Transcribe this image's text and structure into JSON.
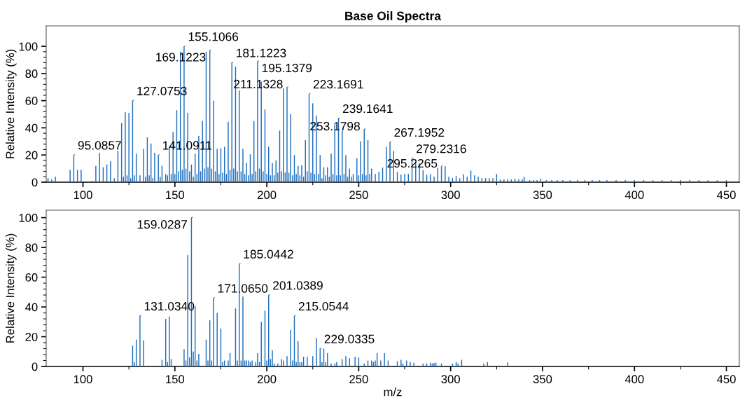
{
  "chart_data": [
    {
      "type": "bar",
      "title": "Base Oil Spectra",
      "ylabel": "Relative Intensity (%)",
      "color": "#1f6fbf",
      "x": [
        81,
        83,
        85,
        93,
        95,
        97,
        99,
        105,
        107,
        109,
        111,
        113,
        115,
        117,
        119,
        121,
        122,
        123,
        124,
        125,
        126,
        127,
        128,
        129,
        131,
        133,
        134,
        135,
        136,
        137,
        138,
        139,
        141,
        142,
        143,
        145,
        146,
        147,
        148,
        149,
        150,
        151,
        152,
        153,
        154,
        155,
        156,
        157,
        158,
        159,
        160,
        161,
        162,
        163,
        164,
        165,
        166,
        167,
        168,
        169,
        170,
        171,
        172,
        173,
        174,
        175,
        176,
        177,
        178,
        179,
        180,
        181,
        182,
        183,
        184,
        185,
        186,
        187,
        188,
        189,
        190,
        191,
        192,
        193,
        194,
        195,
        196,
        197,
        198,
        199,
        200,
        201,
        202,
        203,
        204,
        205,
        206,
        207,
        208,
        209,
        210,
        211,
        212,
        213,
        214,
        215,
        216,
        217,
        218,
        219,
        220,
        221,
        222,
        223,
        224,
        225,
        226,
        227,
        228,
        229,
        230,
        231,
        232,
        233,
        234,
        235,
        236,
        237,
        238,
        239,
        240,
        241,
        242,
        243,
        244,
        245,
        246,
        247,
        249,
        250,
        251,
        252,
        253,
        254,
        255,
        256,
        257,
        259,
        261,
        263,
        265,
        267,
        269,
        271,
        273,
        275,
        277,
        279,
        281,
        283,
        285,
        287,
        289,
        291,
        293,
        295,
        297,
        299,
        301,
        303,
        305,
        307,
        309,
        311,
        313,
        315,
        317,
        319,
        321,
        323,
        325,
        327,
        329,
        331,
        333,
        335,
        337,
        339,
        340,
        343,
        345,
        347,
        349,
        352,
        355,
        358,
        361,
        365,
        369,
        373,
        377,
        381,
        385,
        390,
        395,
        400,
        405,
        410,
        415,
        420,
        425,
        430,
        435,
        440,
        445,
        450
      ],
      "values": [
        3,
        2,
        4,
        9,
        20,
        9,
        9,
        1,
        12,
        21.5,
        11,
        13,
        15.5,
        3,
        23,
        43.5,
        4,
        51.5,
        5,
        51,
        3,
        60,
        5,
        21,
        5,
        24.5,
        4,
        33,
        5,
        28.5,
        3,
        21.5,
        20,
        4,
        12,
        6,
        5,
        26,
        6,
        37,
        6,
        53,
        8,
        96,
        9,
        100,
        10,
        51,
        8,
        13,
        4,
        21,
        6,
        34,
        8,
        45,
        10,
        96,
        11,
        97,
        10,
        60,
        8,
        24.5,
        6,
        25,
        7,
        26,
        6,
        44.5,
        9,
        88,
        10,
        85,
        8,
        67.5,
        8,
        24.5,
        6,
        14,
        5,
        20.5,
        6,
        45,
        8,
        89,
        10,
        74,
        8,
        53.5,
        6,
        26,
        5,
        14,
        5,
        16,
        7,
        38,
        8,
        69,
        7,
        70,
        7,
        50,
        5,
        20,
        6,
        12,
        5,
        12.5,
        4,
        31,
        8,
        65,
        7,
        58,
        6,
        49,
        6,
        20,
        3,
        11,
        5,
        11,
        4,
        21,
        6,
        42.5,
        5,
        47,
        5,
        38,
        6,
        20,
        4,
        10,
        4,
        6,
        17.5,
        5,
        30,
        6,
        39,
        5,
        31,
        6,
        10,
        6,
        7.7,
        10.7,
        26,
        29.5,
        23,
        7.6,
        5.5,
        6,
        6,
        17.5,
        14.5,
        14,
        8.8,
        5.4,
        6,
        4,
        10.5,
        11.7,
        11.7,
        4,
        3,
        4.5,
        3,
        5.8,
        4,
        8.6,
        5,
        4,
        3,
        3,
        3,
        3,
        6,
        2,
        2,
        2,
        2,
        2.5,
        2,
        2,
        4,
        1.5,
        1.5,
        1.5,
        2.6,
        1.5,
        1.5,
        1.5,
        1.5,
        1.5,
        1.5,
        1.5,
        1.5,
        1.5,
        1.5,
        1.5,
        1.5,
        1.5,
        1.5,
        1.5,
        1.5,
        1.5,
        1.5,
        1.5,
        1.5,
        1.5,
        1.5,
        1.5
      ],
      "xlim": [
        80,
        457
      ],
      "ylim": [
        0,
        115
      ],
      "xticks": [
        100,
        {
          "value": 125,
          "label": null
        },
        150,
        {
          "value": 175,
          "label": null
        },
        200,
        {
          "value": 225,
          "label": null
        },
        250,
        {
          "value": 275,
          "label": null
        },
        300,
        {
          "value": 325,
          "label": null
        },
        350,
        {
          "value": 375,
          "label": null
        },
        400,
        {
          "value": 425,
          "label": null
        },
        450
      ],
      "yticks": [
        0,
        {
          "value": 4,
          "label": null
        },
        {
          "value": 8,
          "label": null
        },
        {
          "value": 12,
          "label": null
        },
        {
          "value": 16,
          "label": null
        },
        20,
        {
          "value": 24,
          "label": null
        },
        {
          "value": 28,
          "label": null
        },
        {
          "value": 32,
          "label": null
        },
        {
          "value": 36,
          "label": null
        },
        40,
        {
          "value": 44,
          "label": null
        },
        {
          "value": 48,
          "label": null
        },
        {
          "value": 52,
          "label": null
        },
        {
          "value": 56,
          "label": null
        },
        60,
        {
          "value": 64,
          "label": null
        },
        {
          "value": 68,
          "label": null
        },
        {
          "value": 72,
          "label": null
        },
        {
          "value": 76,
          "label": null
        },
        80,
        {
          "value": 84,
          "label": null
        },
        {
          "value": 88,
          "label": null
        },
        {
          "value": 92,
          "label": null
        },
        {
          "value": 96,
          "label": null
        },
        100
      ],
      "annotations": [
        {
          "text": "95.0857",
          "x": 95,
          "y": 20
        },
        {
          "text": "127.0753",
          "x": 127,
          "y": 60
        },
        {
          "text": "141.0911",
          "x": 141,
          "y": 20
        },
        {
          "text": "155.1066",
          "x": 155,
          "y": 100
        },
        {
          "text": "169.1223",
          "x": 169,
          "y": 97
        },
        {
          "text": "181.1223",
          "x": 181,
          "y": 88
        },
        {
          "text": "195.1379",
          "x": 195,
          "y": 89
        },
        {
          "text": "211.1328",
          "x": 211,
          "y": 70
        },
        {
          "text": "223.1691",
          "x": 223,
          "y": 65
        },
        {
          "text": "239.1641",
          "x": 239,
          "y": 47
        },
        {
          "text": "253.1798",
          "x": 253,
          "y": 39
        },
        {
          "text": "267.1952",
          "x": 267,
          "y": 29.5
        },
        {
          "text": "279.2316",
          "x": 279,
          "y": 17.5
        },
        {
          "text": "295.2265",
          "x": 295,
          "y": 11.7
        }
      ]
    },
    {
      "type": "bar",
      "xlabel": "m/z",
      "ylabel": "Relative Intensity (%)",
      "color": "#1f6fbf",
      "x": [
        127,
        128,
        129,
        131,
        133,
        143,
        145,
        146,
        147,
        148,
        155,
        156,
        157,
        158,
        159,
        160,
        161,
        162,
        163,
        167,
        168,
        169,
        170,
        171,
        173,
        175,
        176,
        177,
        179,
        180,
        183,
        184,
        185,
        186,
        187,
        188,
        189,
        190,
        191,
        192,
        194,
        195,
        196,
        197,
        199,
        200,
        201,
        202,
        203,
        204,
        206,
        208,
        209,
        211,
        213,
        214,
        215,
        216,
        217,
        218,
        219,
        220,
        222,
        225,
        227,
        229,
        230,
        231,
        232,
        233,
        235,
        237,
        238,
        241,
        243,
        245,
        248,
        250,
        253,
        255,
        257,
        258,
        259,
        260,
        262,
        264,
        266,
        271,
        273,
        274,
        276,
        278,
        280,
        285,
        287,
        289,
        290,
        291,
        292,
        295,
        301,
        303,
        304,
        306,
        318,
        320,
        331
      ],
      "values": [
        14,
        3,
        18,
        34,
        17.5,
        4.5,
        32,
        3,
        33.5,
        5,
        11.6,
        4,
        75,
        6,
        100,
        10,
        40.5,
        4,
        8.5,
        18,
        4,
        31,
        4,
        46,
        36,
        25.5,
        3,
        4,
        4,
        9,
        39,
        4,
        69,
        4,
        47,
        4,
        4,
        4,
        3,
        4,
        3,
        9,
        3,
        30,
        37.5,
        4,
        48,
        5,
        11,
        2,
        2,
        5,
        4,
        7,
        24.5,
        4,
        34,
        3,
        17,
        3,
        3,
        6.5,
        6.5,
        7,
        19,
        12,
        3,
        12,
        3,
        9,
        2,
        2,
        3,
        5,
        7,
        5.5,
        6.5,
        6,
        2,
        4,
        4,
        3,
        4,
        9,
        4,
        9,
        4,
        3.5,
        4.5,
        2,
        4,
        3,
        2.5,
        2,
        2,
        2.5,
        2,
        2.5,
        2.5,
        2,
        2,
        3,
        2,
        4.5,
        2,
        3,
        2.7
      ],
      "xlim": [
        80,
        457
      ],
      "ylim": [
        0,
        105
      ],
      "xticks": [
        100,
        {
          "value": 125,
          "label": null
        },
        150,
        {
          "value": 175,
          "label": null
        },
        200,
        {
          "value": 225,
          "label": null
        },
        250,
        {
          "value": 275,
          "label": null
        },
        300,
        {
          "value": 325,
          "label": null
        },
        350,
        {
          "value": 375,
          "label": null
        },
        400,
        {
          "value": 425,
          "label": null
        },
        450
      ],
      "yticks": [
        0,
        {
          "value": 4,
          "label": null
        },
        {
          "value": 8,
          "label": null
        },
        {
          "value": 12,
          "label": null
        },
        {
          "value": 16,
          "label": null
        },
        20,
        {
          "value": 24,
          "label": null
        },
        {
          "value": 28,
          "label": null
        },
        {
          "value": 32,
          "label": null
        },
        {
          "value": 36,
          "label": null
        },
        40,
        {
          "value": 44,
          "label": null
        },
        {
          "value": 48,
          "label": null
        },
        {
          "value": 52,
          "label": null
        },
        {
          "value": 56,
          "label": null
        },
        60,
        {
          "value": 64,
          "label": null
        },
        {
          "value": 68,
          "label": null
        },
        {
          "value": 72,
          "label": null
        },
        {
          "value": 76,
          "label": null
        },
        80,
        {
          "value": 84,
          "label": null
        },
        {
          "value": 88,
          "label": null
        },
        {
          "value": 92,
          "label": null
        },
        {
          "value": 96,
          "label": null
        },
        100
      ],
      "annotations": [
        {
          "text": "131.0340",
          "x": 131,
          "y": 34
        },
        {
          "text": "159.0287",
          "x": 159,
          "y": 100
        },
        {
          "text": "171.0650",
          "x": 171,
          "y": 46
        },
        {
          "text": "185.0442",
          "x": 185,
          "y": 69
        },
        {
          "text": "201.0389",
          "x": 201,
          "y": 48
        },
        {
          "text": "215.0544",
          "x": 215,
          "y": 34
        },
        {
          "text": "229.0335",
          "x": 229,
          "y": 12
        }
      ]
    }
  ]
}
